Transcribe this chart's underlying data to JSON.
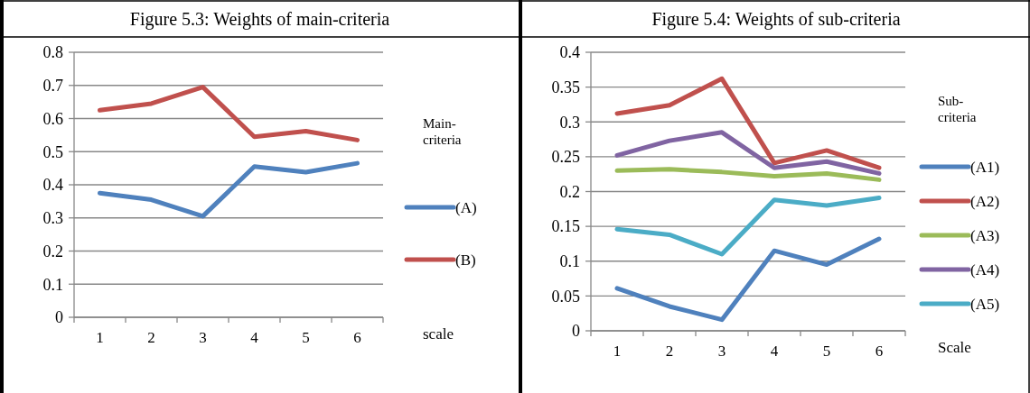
{
  "chart_data": [
    {
      "type": "line",
      "title": "Figure 5.3: Weights of main-criteria",
      "xlabel": "scale",
      "legend_title": "Main-criteria",
      "legend": "right",
      "grid": "y",
      "line_style": "solid",
      "marker": "none",
      "categories": [
        "1",
        "2",
        "3",
        "4",
        "5",
        "6"
      ],
      "ylim": [
        0,
        0.8
      ],
      "yticks": [
        0,
        0.1,
        0.2,
        0.3,
        0.4,
        0.5,
        0.6,
        0.7,
        0.8
      ],
      "series": [
        {
          "name": "(A)",
          "color": "#4f81bd",
          "values": [
            0.375,
            0.355,
            0.305,
            0.455,
            0.438,
            0.465
          ]
        },
        {
          "name": "(B)",
          "color": "#c0504d",
          "values": [
            0.625,
            0.645,
            0.695,
            0.545,
            0.562,
            0.535
          ]
        }
      ]
    },
    {
      "type": "line",
      "title": "Figure 5.4: Weights of sub-criteria",
      "xlabel": "Scale",
      "legend_title": "Sub-criteria",
      "legend": "right",
      "grid": "y",
      "line_style": "solid",
      "marker": "none",
      "categories": [
        "1",
        "2",
        "3",
        "4",
        "5",
        "6"
      ],
      "ylim": [
        0,
        0.4
      ],
      "yticks": [
        0,
        0.05,
        0.1,
        0.15,
        0.2,
        0.25,
        0.3,
        0.35,
        0.4
      ],
      "series": [
        {
          "name": "(A1)",
          "color": "#4f81bd",
          "values": [
            0.061,
            0.035,
            0.016,
            0.115,
            0.095,
            0.132
          ]
        },
        {
          "name": "(A2)",
          "color": "#c0504d",
          "values": [
            0.312,
            0.324,
            0.362,
            0.241,
            0.259,
            0.234
          ]
        },
        {
          "name": "(A3)",
          "color": "#9bbb59",
          "values": [
            0.23,
            0.232,
            0.228,
            0.222,
            0.226,
            0.217
          ]
        },
        {
          "name": "(A4)",
          "color": "#8064a2",
          "values": [
            0.252,
            0.273,
            0.285,
            0.234,
            0.243,
            0.226
          ]
        },
        {
          "name": "(A5)",
          "color": "#4bacc6",
          "values": [
            0.146,
            0.138,
            0.11,
            0.188,
            0.18,
            0.191
          ]
        }
      ]
    }
  ]
}
